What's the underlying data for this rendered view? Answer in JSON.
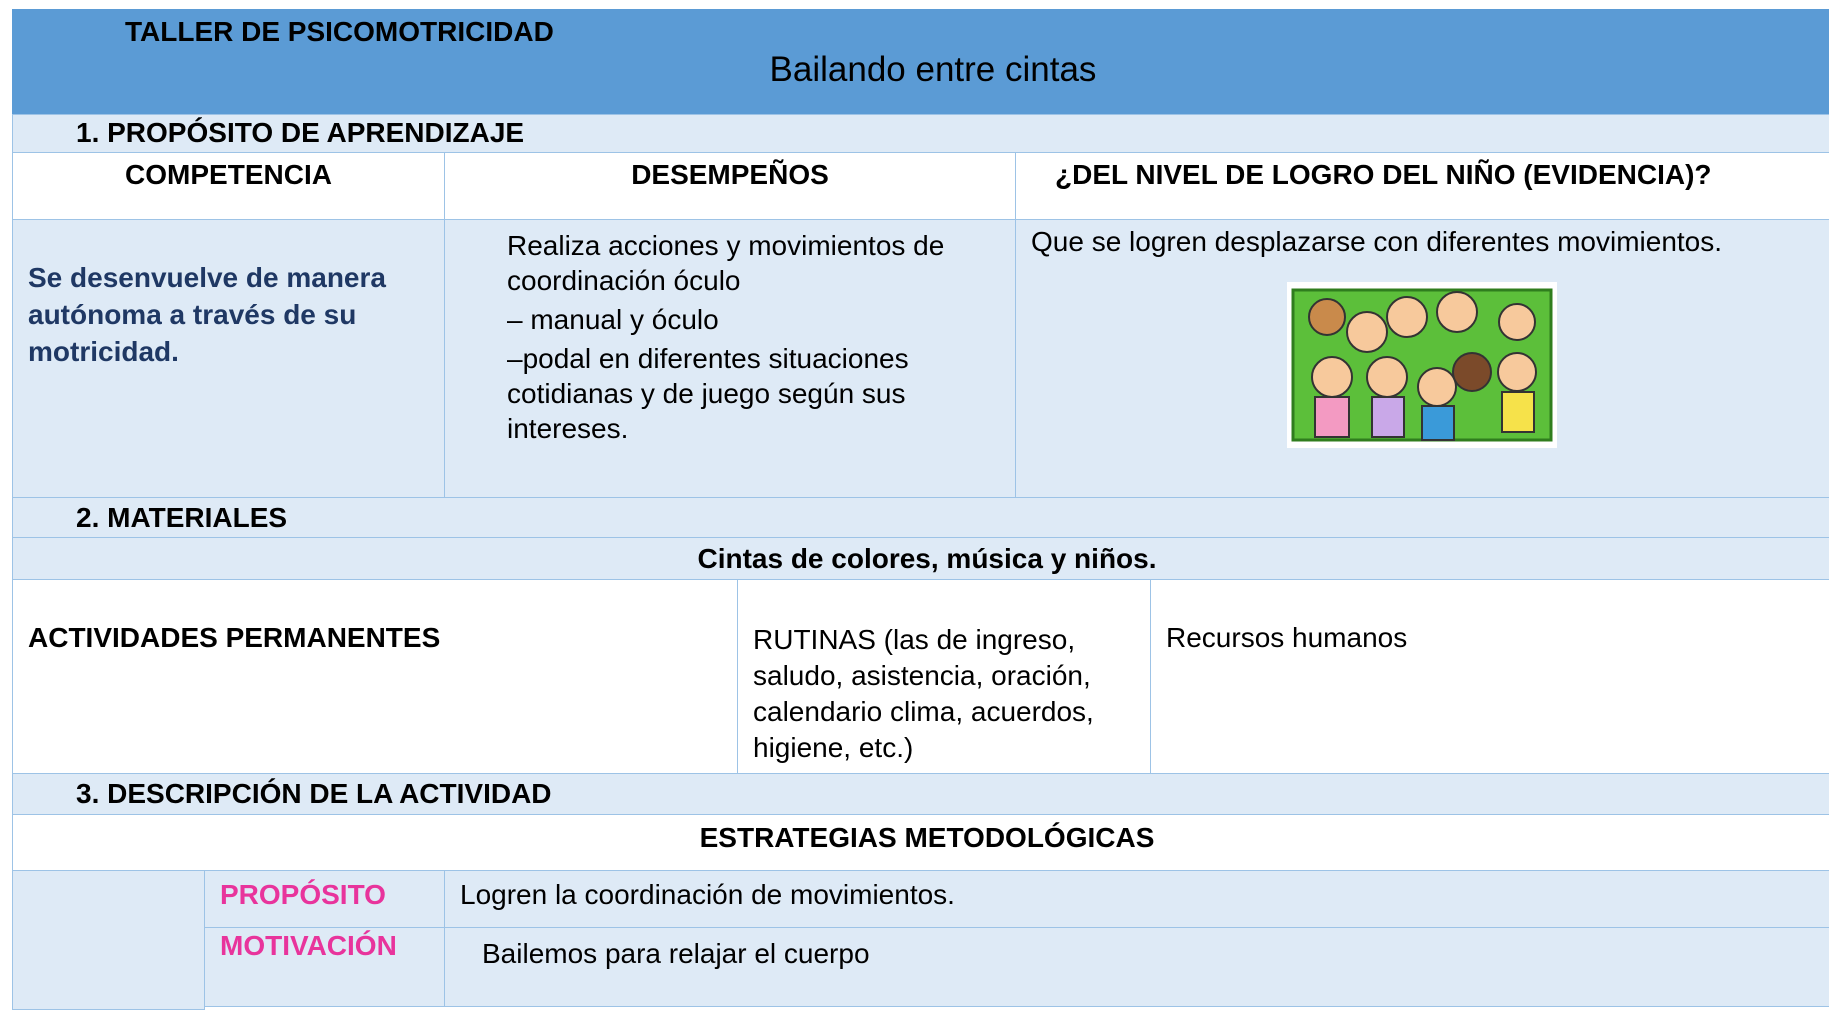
{
  "header": {
    "title": "TALLER DE PSICOMOTRICIDAD",
    "subtitle": "Bailando entre cintas"
  },
  "section1": {
    "heading": "1. PROPÓSITO DE APRENDIZAJE",
    "columns": [
      "COMPETENCIA",
      "DESEMPEÑOS",
      "¿DEL NIVEL DE LOGRO DEL NIÑO (EVIDENCIA)?"
    ],
    "competencia": "Se desenvuelve de manera autónoma a través de su motricidad.",
    "desempenos": [
      "Realiza acciones y movimientos de coordinación óculo",
      "– manual y óculo",
      "–podal en diferentes situaciones cotidianas y de juego según sus intereses."
    ],
    "evidencia": "Que se logren desplazarse con diferentes movimientos."
  },
  "section2": {
    "heading": "2. MATERIALES",
    "materials": "Cintas de colores, música y niños.",
    "actividades": "ACTIVIDADES PERMANENTES",
    "rutinas": "RUTINAS (las de ingreso, saludo, asistencia, oración, calendario clima, acuerdos, higiene, etc.)",
    "recursos": "Recursos humanos"
  },
  "section3": {
    "heading": "3. DESCRIPCIÓN DE LA ACTIVIDAD",
    "strategies": "ESTRATEGIAS METODOLÓGICAS",
    "rows": [
      [
        "PROPÓSITO",
        "Logren la coordinación de movimientos."
      ],
      [
        "MOTIVACIÓN",
        "Bailemos para relajar el cuerpo"
      ]
    ]
  }
}
